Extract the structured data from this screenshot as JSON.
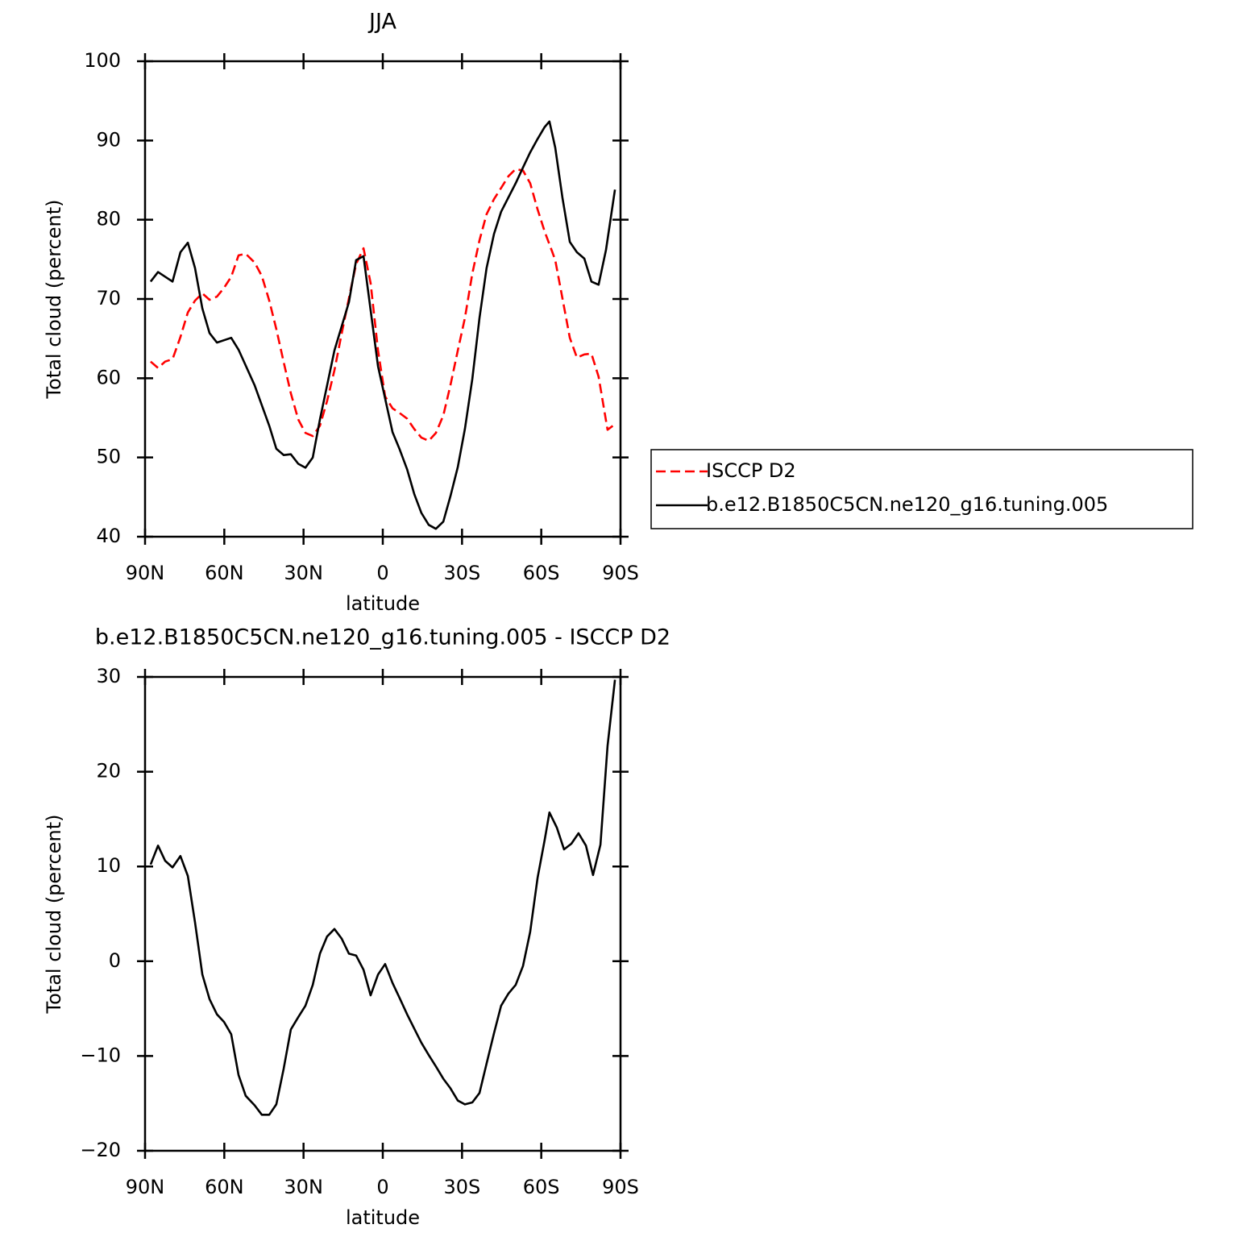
{
  "chart_data": [
    {
      "type": "line",
      "title": "JJA",
      "x_label": "latitude",
      "y_label": "Total cloud (percent)",
      "xlim": [
        90,
        -90
      ],
      "xticks": [
        {
          "value": 90,
          "label": "90N"
        },
        {
          "value": 60,
          "label": "60N"
        },
        {
          "value": 30,
          "label": "30N"
        },
        0,
        {
          "value": -30,
          "label": "30S"
        },
        {
          "value": -60,
          "label": "60S"
        },
        {
          "value": -90,
          "label": "90S"
        }
      ],
      "ylim": [
        40,
        100
      ],
      "yticks": [
        40,
        50,
        60,
        70,
        80,
        90,
        100
      ],
      "legend_position": "right",
      "series": [
        {
          "name": "ISCCP D2",
          "color": "#ff0000",
          "dashed": true,
          "x": [
            87.9,
            85.1,
            82.4,
            79.6,
            76.6,
            73.8,
            71.1,
            68.3,
            65.6,
            62.8,
            60.1,
            57.4,
            54.6,
            51.9,
            48.5,
            45.8,
            43.0,
            40.3,
            37.5,
            34.8,
            32.0,
            29.3,
            26.5,
            23.8,
            21.1,
            18.3,
            15.6,
            12.8,
            10.1,
            7.3,
            4.6,
            1.8,
            -0.9,
            -3.7,
            -6.4,
            -9.2,
            -11.9,
            -14.6,
            -17.4,
            -20.1,
            -22.9,
            -25.6,
            -28.4,
            -31.1,
            -33.9,
            -36.6,
            -39.3,
            -42.1,
            -44.8,
            -47.6,
            -50.3,
            -53.1,
            -55.8,
            -58.6,
            -61.3,
            -64.1,
            -65.3,
            -68.0,
            -70.8,
            -73.5,
            -76.3,
            -79.0,
            -81.7,
            -85.1,
            -87.9
          ],
          "values": [
            62.1,
            61.3,
            62.1,
            62.4,
            65.2,
            68.3,
            69.8,
            70.7,
            69.9,
            70.3,
            71.4,
            72.8,
            75.5,
            75.7,
            74.6,
            72.9,
            69.8,
            66.2,
            62.0,
            58.1,
            54.8,
            53.1,
            52.7,
            54.0,
            57.1,
            61.0,
            65.6,
            70.1,
            74.4,
            76.4,
            72.0,
            63.5,
            57.7,
            56.2,
            55.6,
            54.9,
            53.6,
            52.5,
            52.1,
            53.1,
            55.3,
            59.1,
            63.5,
            67.6,
            73.2,
            77.4,
            80.7,
            82.6,
            84.0,
            85.5,
            86.4,
            86.2,
            84.6,
            81.3,
            78.5,
            76.0,
            74.9,
            70.1,
            65.1,
            62.6,
            63.0,
            63.1,
            60.2,
            53.5,
            54.2
          ]
        },
        {
          "name": "b.e12.B1850C5CN.ne120_g16.tuning.005",
          "color": "#000000",
          "dashed": false,
          "x": [
            87.9,
            85.1,
            79.6,
            76.6,
            73.8,
            71.1,
            68.3,
            65.6,
            62.8,
            57.4,
            54.6,
            48.5,
            43.0,
            40.3,
            37.5,
            34.8,
            32.0,
            29.3,
            26.5,
            23.8,
            18.3,
            12.8,
            10.1,
            7.3,
            4.6,
            1.8,
            -3.7,
            -6.4,
            -9.2,
            -11.9,
            -14.6,
            -17.4,
            -20.1,
            -22.9,
            -25.6,
            -28.4,
            -31.1,
            -33.9,
            -36.6,
            -39.3,
            -42.1,
            -44.8,
            -50.3,
            -53.1,
            -55.8,
            -58.6,
            -61.3,
            -63.1,
            -65.3,
            -68.0,
            -70.8,
            -73.5,
            -76.3,
            -79.0,
            -81.7,
            -84.5,
            -87.9
          ],
          "values": [
            72.2,
            73.4,
            72.2,
            75.9,
            77.1,
            73.9,
            68.8,
            65.7,
            64.5,
            65.1,
            63.6,
            59.1,
            54.0,
            51.1,
            50.3,
            50.4,
            49.2,
            48.7,
            50.0,
            54.8,
            63.5,
            69.6,
            74.9,
            75.4,
            68.6,
            61.5,
            53.2,
            51.0,
            48.5,
            45.4,
            43.0,
            41.5,
            41.0,
            41.9,
            45.1,
            48.8,
            53.6,
            59.9,
            67.6,
            73.9,
            78.2,
            81.0,
            84.6,
            86.6,
            88.5,
            90.2,
            91.7,
            92.4,
            89.1,
            82.8,
            77.2,
            75.9,
            75.1,
            72.2,
            71.8,
            76.2,
            83.8
          ]
        }
      ]
    },
    {
      "type": "line",
      "title": "b.e12.B1850C5CN.ne120_g16.tuning.005 - ISCCP D2",
      "x_label": "latitude",
      "y_label": "Total cloud (percent)",
      "xlim": [
        90,
        -90
      ],
      "xticks": [
        {
          "value": 90,
          "label": "90N"
        },
        {
          "value": 60,
          "label": "60N"
        },
        {
          "value": 30,
          "label": "30N"
        },
        0,
        {
          "value": -30,
          "label": "30S"
        },
        {
          "value": -60,
          "label": "60S"
        },
        {
          "value": -90,
          "label": "90S"
        }
      ],
      "ylim": [
        -20,
        30
      ],
      "yticks": [
        {
          "value": -20,
          "label": "−20"
        },
        {
          "value": -10,
          "label": "−10"
        },
        0,
        10,
        20,
        30
      ],
      "color": "#000000",
      "x": [
        87.9,
        85.1,
        82.4,
        79.6,
        76.6,
        73.8,
        71.1,
        68.3,
        65.6,
        62.8,
        60.1,
        57.4,
        54.6,
        51.9,
        48.5,
        45.8,
        43.0,
        40.3,
        37.5,
        34.8,
        32.0,
        29.3,
        26.5,
        23.8,
        21.1,
        18.3,
        15.6,
        12.8,
        10.1,
        7.3,
        4.6,
        1.8,
        -0.9,
        -3.7,
        -6.4,
        -9.2,
        -11.9,
        -14.6,
        -17.4,
        -20.1,
        -22.9,
        -25.6,
        -28.4,
        -31.1,
        -33.9,
        -36.6,
        -39.3,
        -42.1,
        -44.8,
        -47.6,
        -50.3,
        -53.1,
        -55.8,
        -58.6,
        -61.3,
        -63.1,
        -65.9,
        -68.6,
        -71.4,
        -74.1,
        -76.9,
        -79.6,
        -82.4,
        -85.1,
        -87.9
      ],
      "values": [
        10.2,
        12.2,
        10.6,
        9.9,
        11.1,
        9.0,
        4.1,
        -1.4,
        -4.0,
        -5.6,
        -6.4,
        -7.7,
        -12.0,
        -14.2,
        -15.2,
        -16.2,
        -16.2,
        -15.1,
        -11.3,
        -7.2,
        -5.9,
        -4.7,
        -2.5,
        0.8,
        2.6,
        3.4,
        2.4,
        0.8,
        0.6,
        -0.9,
        -3.6,
        -1.4,
        -0.3,
        -2.3,
        -3.9,
        -5.6,
        -7.1,
        -8.6,
        -9.9,
        -11.1,
        -12.4,
        -13.4,
        -14.7,
        -15.1,
        -14.9,
        -13.9,
        -10.8,
        -7.6,
        -4.7,
        -3.4,
        -2.5,
        -0.5,
        3.1,
        8.8,
        12.8,
        15.7,
        14.1,
        11.8,
        12.4,
        13.5,
        12.2,
        9.1,
        12.3,
        22.7,
        29.7
      ]
    }
  ]
}
